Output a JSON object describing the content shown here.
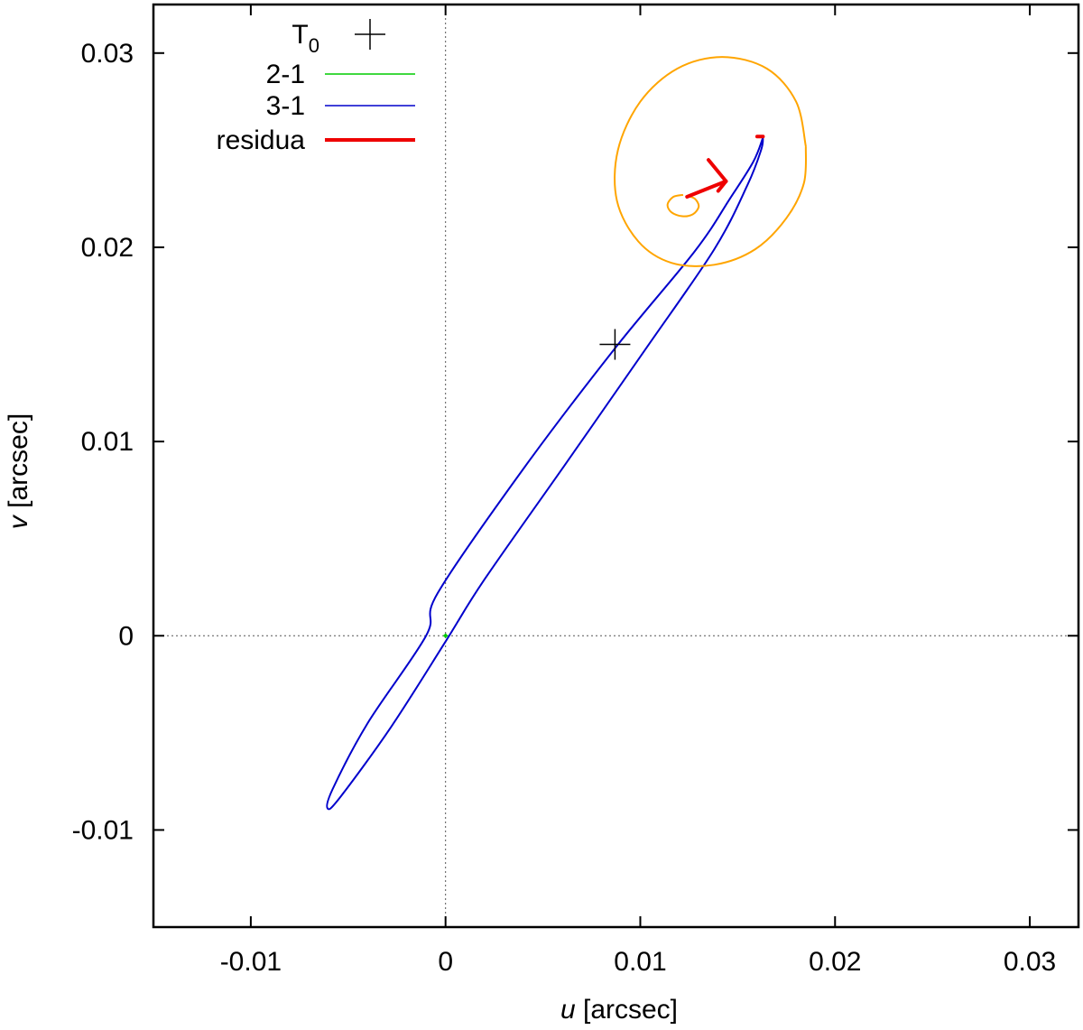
{
  "chart_data": {
    "type": "line",
    "xlabel_var": "u",
    "xlabel_unit": " [arcsec]",
    "ylabel_var": "v",
    "ylabel_unit": " [arcsec]",
    "xlim": [
      -0.015,
      0.0325
    ],
    "ylim": [
      -0.015,
      0.0325
    ],
    "xticks": [
      -0.01,
      0,
      0.01,
      0.02,
      0.03
    ],
    "yticks": [
      -0.01,
      0,
      0.01,
      0.02,
      0.03
    ],
    "xtick_labels": [
      "-0.01",
      "0",
      "0.01",
      "0.02",
      "0.03"
    ],
    "ytick_labels": [
      "-0.01",
      "0",
      "0.01",
      "0.02",
      "0.03"
    ],
    "zero_lines": true,
    "legend_position": "top-left",
    "legend": [
      {
        "label": "T",
        "sub": "0",
        "kind": "marker"
      },
      {
        "label": "2-1",
        "kind": "line",
        "color": "#00cc00"
      },
      {
        "label": "3-1",
        "kind": "line",
        "color": "#0000cc"
      },
      {
        "label": "residua",
        "kind": "thick",
        "color": "#ee0000"
      }
    ],
    "series": [
      {
        "name": "3-1",
        "color": "#0000cc",
        "points": [
          [
            0.0163,
            0.02565
          ],
          [
            0.0158,
            0.0244
          ],
          [
            0.0146,
            0.0225
          ],
          [
            0.0128,
            0.0198
          ],
          [
            0.0087,
            0.0148
          ],
          [
            0.004,
            0.0086
          ],
          [
            -0.0004,
            0.0022
          ],
          [
            -0.001,
            0.0
          ],
          [
            -0.004,
            -0.0045
          ],
          [
            -0.0058,
            -0.0079
          ],
          [
            -0.00605,
            -0.0089
          ],
          [
            -0.0054,
            -0.0083
          ],
          [
            -0.0028,
            -0.0047
          ],
          [
            0.0,
            -0.0003
          ],
          [
            0.002,
            0.0029
          ],
          [
            0.0062,
            0.0089
          ],
          [
            0.0103,
            0.0148
          ],
          [
            0.0138,
            0.0199
          ],
          [
            0.0155,
            0.0232
          ],
          [
            0.0162,
            0.025
          ],
          [
            0.0163,
            0.02565
          ]
        ]
      },
      {
        "name": "orange-outer",
        "color": "#ffa500",
        "points": [
          [
            0.0185,
            0.0252
          ],
          [
            0.018,
            0.0275
          ],
          [
            0.0165,
            0.0292
          ],
          [
            0.0142,
            0.0298
          ],
          [
            0.0119,
            0.0292
          ],
          [
            0.01,
            0.0275
          ],
          [
            0.00885,
            0.025
          ],
          [
            0.0088,
            0.0224
          ],
          [
            0.0099,
            0.0203
          ],
          [
            0.0116,
            0.0192
          ],
          [
            0.0138,
            0.0191
          ],
          [
            0.0159,
            0.0199
          ],
          [
            0.0175,
            0.0215
          ],
          [
            0.0184,
            0.0233
          ],
          [
            0.0185,
            0.0252
          ]
        ]
      },
      {
        "name": "orange-inner",
        "color": "#ffa500",
        "points": [
          [
            0.0122,
            0.0227
          ],
          [
            0.0117,
            0.0226
          ],
          [
            0.0114,
            0.0222
          ],
          [
            0.0116,
            0.0218
          ],
          [
            0.01215,
            0.0216
          ],
          [
            0.0127,
            0.0217
          ],
          [
            0.013,
            0.0221
          ],
          [
            0.0128,
            0.0225
          ],
          [
            0.0124,
            0.02265
          ]
        ]
      },
      {
        "name": "2-1",
        "color": "#00cc00",
        "points": [
          [
            -6e-05,
            0.0
          ],
          [
            6e-05,
            0.0
          ],
          [
            0.0,
            0.0
          ],
          [
            0.0,
            6e-05
          ],
          [
            0.0,
            -6e-05
          ]
        ]
      }
    ],
    "residua_segments": [
      [
        [
          0.0124,
          0.0226
        ],
        [
          0.0144,
          0.0234
        ]
      ],
      [
        [
          0.0135,
          0.0245
        ],
        [
          0.0144,
          0.0234
        ]
      ],
      [
        [
          0.014,
          0.0229
        ],
        [
          0.0144,
          0.0234
        ]
      ],
      [
        [
          0.016,
          0.0257
        ],
        [
          0.0163,
          0.0257
        ]
      ]
    ],
    "t0_marker": [
      0.0087,
      0.015
    ]
  }
}
